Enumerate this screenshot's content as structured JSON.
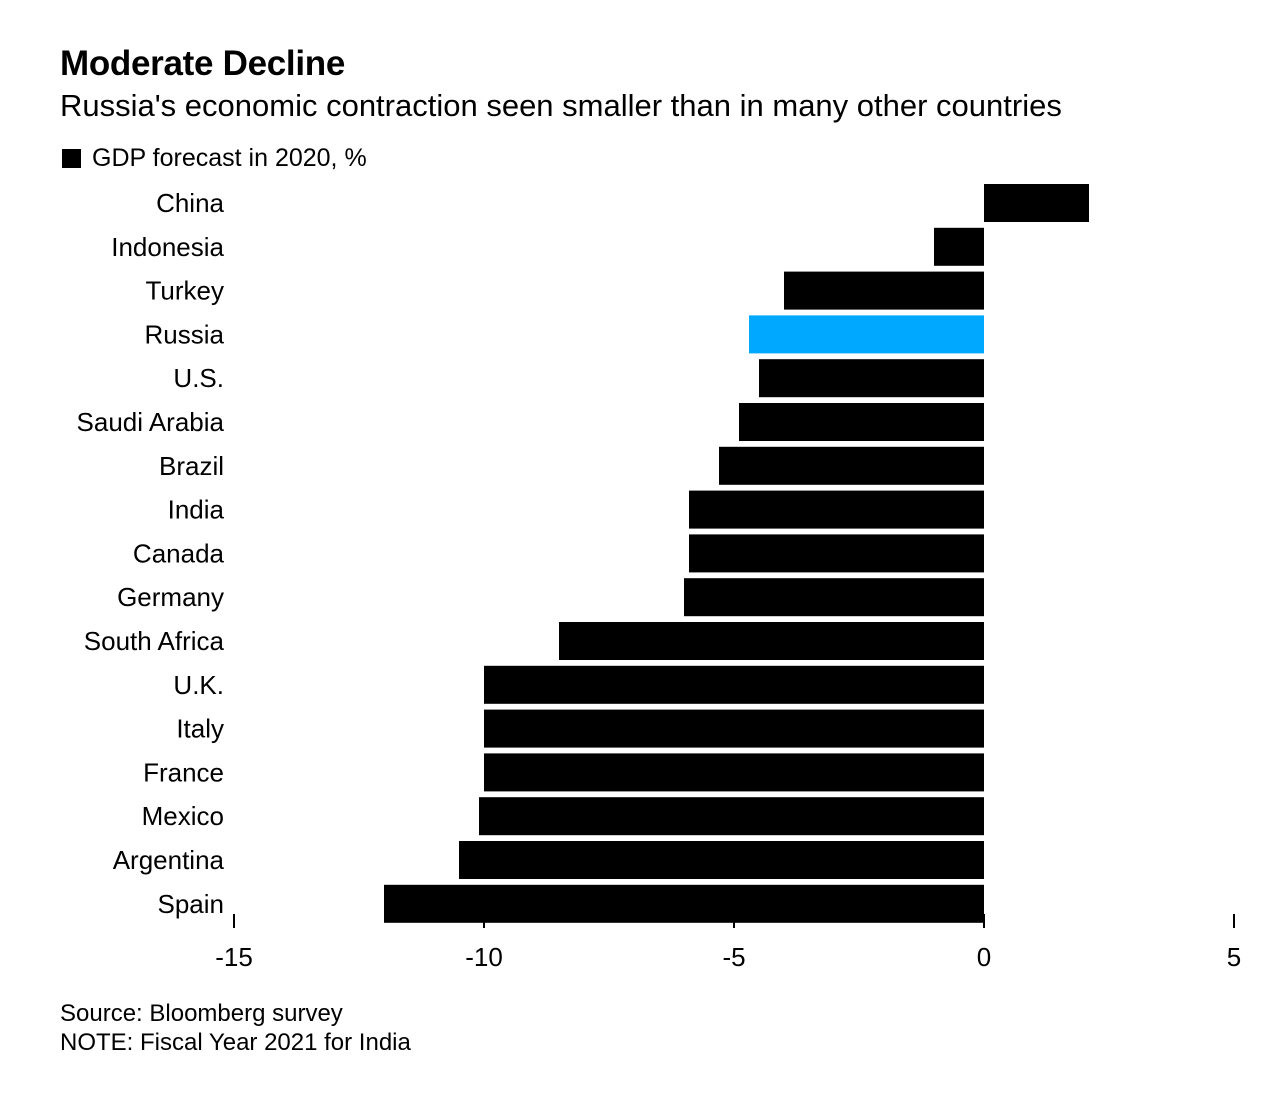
{
  "header": {
    "title": "Moderate Decline",
    "subtitle": "Russia's economic contraction seen smaller than in many other countries"
  },
  "legend": {
    "label": "GDP forecast in 2020, %"
  },
  "footer": {
    "source": "Source: Bloomberg survey",
    "note": "NOTE: Fiscal Year 2021 for India"
  },
  "colors": {
    "default_bar": "#000000",
    "highlight_bar": "#00a8ff"
  },
  "chart_data": {
    "type": "bar",
    "orientation": "horizontal",
    "categories": [
      "China",
      "Indonesia",
      "Turkey",
      "Russia",
      "U.S.",
      "Saudi Arabia",
      "Brazil",
      "India",
      "Canada",
      "Germany",
      "South Africa",
      "U.K.",
      "Italy",
      "France",
      "Mexico",
      "Argentina",
      "Spain"
    ],
    "series": [
      {
        "name": "GDP forecast in 2020, %",
        "values": [
          2.1,
          -1.0,
          -4.0,
          -4.7,
          -4.5,
          -4.9,
          -5.3,
          -5.9,
          -5.9,
          -6.0,
          -8.5,
          -10.0,
          -10.0,
          -10.0,
          -10.1,
          -10.5,
          -12.0
        ]
      }
    ],
    "highlight": "Russia",
    "xlim": [
      -15,
      5
    ],
    "xticks": [
      "-15",
      "-10",
      "-5",
      "0",
      "5"
    ],
    "xlabel": "",
    "ylabel": "",
    "grid": false
  }
}
